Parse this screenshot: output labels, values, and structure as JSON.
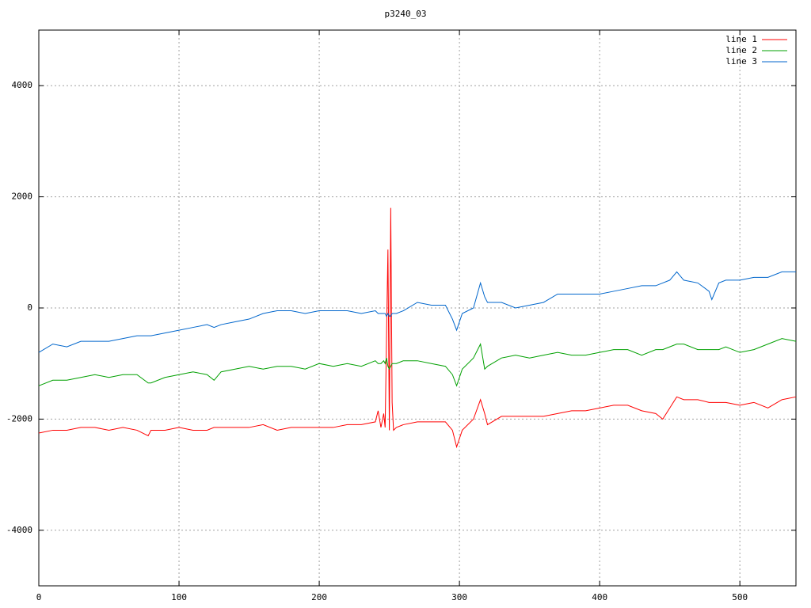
{
  "chart_data": {
    "type": "line",
    "title": "p3240_03",
    "x": [
      0,
      10,
      20,
      30,
      40,
      50,
      60,
      70,
      78,
      80,
      90,
      100,
      110,
      120,
      125,
      130,
      140,
      150,
      160,
      170,
      180,
      190,
      200,
      210,
      220,
      230,
      240,
      242,
      244,
      246,
      247,
      248,
      249,
      250,
      251,
      252,
      253,
      255,
      260,
      270,
      280,
      290,
      295,
      298,
      302,
      310,
      315,
      318,
      320,
      330,
      340,
      350,
      360,
      370,
      380,
      390,
      400,
      410,
      420,
      430,
      440,
      445,
      450,
      455,
      460,
      470,
      478,
      480,
      485,
      490,
      500,
      510,
      520,
      530,
      540
    ],
    "series": [
      {
        "name": "line 1",
        "color": "#ff0000",
        "values": [
          -2250,
          -2200,
          -2200,
          -2150,
          -2150,
          -2200,
          -2150,
          -2200,
          -2300,
          -2200,
          -2200,
          -2150,
          -2200,
          -2200,
          -2150,
          -2150,
          -2150,
          -2150,
          -2100,
          -2200,
          -2150,
          -2150,
          -2150,
          -2150,
          -2100,
          -2100,
          -2050,
          -1850,
          -2150,
          -1900,
          -2150,
          -500,
          1050,
          -2200,
          1800,
          -1700,
          -2200,
          -2150,
          -2100,
          -2050,
          -2050,
          -2050,
          -2200,
          -2500,
          -2200,
          -2000,
          -1650,
          -1900,
          -2100,
          -1950,
          -1950,
          -1950,
          -1950,
          -1900,
          -1850,
          -1850,
          -1800,
          -1750,
          -1750,
          -1850,
          -1900,
          -2000,
          -1800,
          -1600,
          -1650,
          -1650,
          -1700,
          -1700,
          -1700,
          -1700,
          -1750,
          -1700,
          -1800,
          -1650,
          -1600
        ]
      },
      {
        "name": "line 2",
        "color": "#00a000",
        "values": [
          -1400,
          -1300,
          -1300,
          -1250,
          -1200,
          -1250,
          -1200,
          -1200,
          -1350,
          -1350,
          -1250,
          -1200,
          -1150,
          -1200,
          -1300,
          -1150,
          -1100,
          -1050,
          -1100,
          -1050,
          -1050,
          -1100,
          -1000,
          -1050,
          -1000,
          -1050,
          -950,
          -1000,
          -1000,
          -950,
          -1000,
          -900,
          -1050,
          -1100,
          -1050,
          -1000,
          -1000,
          -1000,
          -950,
          -950,
          -1000,
          -1050,
          -1200,
          -1400,
          -1100,
          -900,
          -650,
          -1100,
          -1050,
          -900,
          -850,
          -900,
          -850,
          -800,
          -850,
          -850,
          -800,
          -750,
          -750,
          -850,
          -750,
          -750,
          -700,
          -650,
          -650,
          -750,
          -750,
          -750,
          -750,
          -700,
          -800,
          -750,
          -650,
          -550,
          -600
        ]
      },
      {
        "name": "line 3",
        "color": "#0066cc",
        "values": [
          -800,
          -650,
          -700,
          -600,
          -600,
          -600,
          -550,
          -500,
          -500,
          -500,
          -450,
          -400,
          -350,
          -300,
          -350,
          -300,
          -250,
          -200,
          -100,
          -50,
          -50,
          -100,
          -50,
          -50,
          -50,
          -100,
          -50,
          -100,
          -100,
          -100,
          -100,
          -150,
          -100,
          -150,
          -150,
          -100,
          -100,
          -100,
          -50,
          100,
          50,
          50,
          -200,
          -400,
          -100,
          0,
          450,
          200,
          100,
          100,
          0,
          50,
          100,
          250,
          250,
          250,
          250,
          300,
          350,
          400,
          400,
          450,
          500,
          650,
          500,
          450,
          300,
          150,
          450,
          500,
          500,
          550,
          550,
          650,
          650
        ]
      }
    ],
    "xlim": [
      0,
      540
    ],
    "ylim": [
      -5000,
      5000
    ],
    "xticks": [
      0,
      100,
      200,
      300,
      400,
      500
    ],
    "yticks": [
      -4000,
      -2000,
      0,
      2000,
      4000
    ],
    "grid": true,
    "legend": "top-right"
  }
}
